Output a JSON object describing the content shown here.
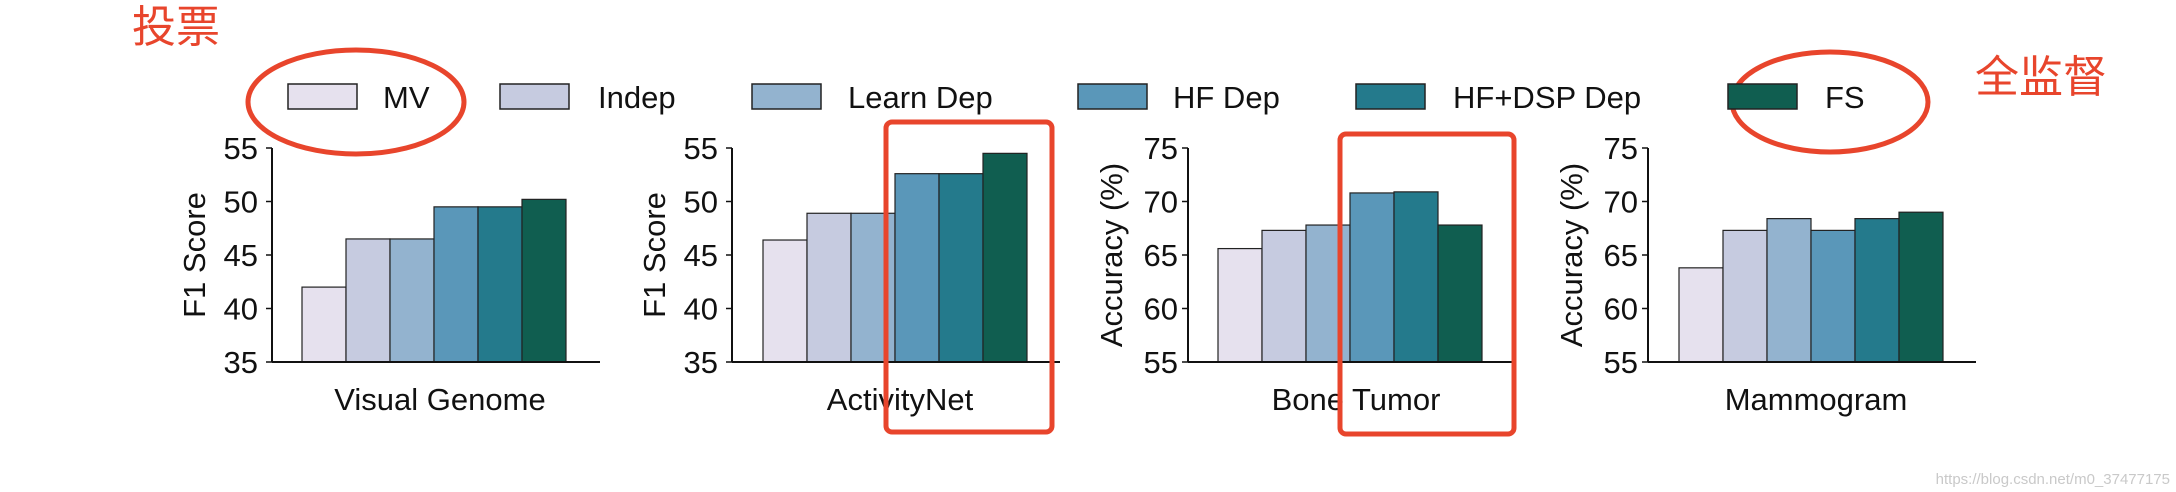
{
  "annotations": {
    "vote_label": "投票",
    "full_supervision_label": "全监督",
    "highlight_color": "#e8452c"
  },
  "legend": [
    {
      "label": "MV",
      "color": "#e6e1ee"
    },
    {
      "label": "Indep",
      "color": "#c6cbe0"
    },
    {
      "label": "Learn Dep",
      "color": "#93b3cf"
    },
    {
      "label": "HF Dep",
      "color": "#5a97b9"
    },
    {
      "label": "HF+DSP Dep",
      "color": "#247a8c"
    },
    {
      "label": "FS",
      "color": "#105e50"
    }
  ],
  "watermark": "https://blog.csdn.net/m0_37477175",
  "chart_data": [
    {
      "type": "bar",
      "title": "Visual Genome",
      "xlabel": "Visual Genome",
      "ylabel": "F1 Score",
      "ylim": [
        35,
        55
      ],
      "yticks": [
        "35",
        "40",
        "45",
        "50",
        "55"
      ],
      "categories": [
        "MV",
        "Indep",
        "Learn Dep",
        "HF Dep",
        "HF+DSP Dep",
        "FS"
      ],
      "values": [
        42.0,
        46.5,
        46.5,
        49.5,
        49.5,
        50.2
      ]
    },
    {
      "type": "bar",
      "title": "ActivityNet",
      "xlabel": "ActivityNet",
      "ylabel": "F1 Score",
      "ylim": [
        35,
        55
      ],
      "yticks": [
        "35",
        "40",
        "45",
        "50",
        "55"
      ],
      "categories": [
        "MV",
        "Indep",
        "Learn Dep",
        "HF Dep",
        "HF+DSP Dep",
        "FS"
      ],
      "values": [
        46.4,
        48.9,
        48.9,
        52.6,
        52.6,
        54.5
      ]
    },
    {
      "type": "bar",
      "title": "Bone Tumor",
      "xlabel": "Bone Tumor",
      "ylabel": "Accuracy (%)",
      "ylim": [
        55,
        75
      ],
      "yticks": [
        "55",
        "60",
        "65",
        "70",
        "75"
      ],
      "categories": [
        "MV",
        "Indep",
        "Learn Dep",
        "HF Dep",
        "HF+DSP Dep",
        "FS"
      ],
      "values": [
        65.6,
        67.3,
        67.8,
        70.8,
        70.9,
        67.8
      ]
    },
    {
      "type": "bar",
      "title": "Mammogram",
      "xlabel": "Mammogram",
      "ylabel": "Accuracy (%)",
      "ylim": [
        55,
        75
      ],
      "yticks": [
        "55",
        "60",
        "65",
        "70",
        "75"
      ],
      "categories": [
        "MV",
        "Indep",
        "Learn Dep",
        "HF Dep",
        "HF+DSP Dep",
        "FS"
      ],
      "values": [
        63.8,
        67.3,
        68.4,
        67.3,
        68.4,
        69.0
      ]
    }
  ]
}
